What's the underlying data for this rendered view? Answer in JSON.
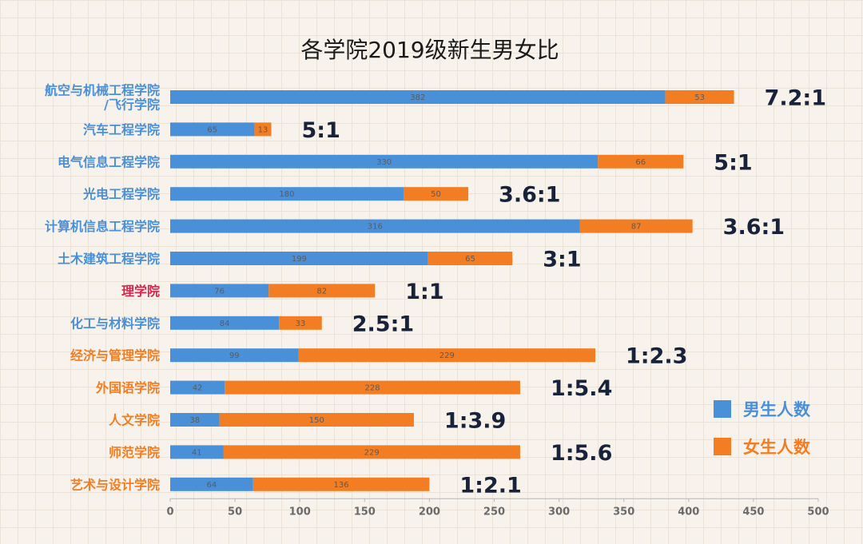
{
  "chart_data": {
    "type": "bar",
    "orientation": "horizontal",
    "stacked": true,
    "title": "各学院2019级新生男女比",
    "categories": [
      [
        "航空与机械工程学院",
        "/飞行学院"
      ],
      [
        "汽车工程学院"
      ],
      [
        "电气信息工程学院"
      ],
      [
        "光电工程学院"
      ],
      [
        "计算机信息工程学院"
      ],
      [
        "土木建筑工程学院"
      ],
      [
        "理学院"
      ],
      [
        "化工与材料学院"
      ],
      [
        "经济与管理学院"
      ],
      [
        "外国语学院"
      ],
      [
        "人文学院"
      ],
      [
        "师范学院"
      ],
      [
        "艺术与设计学院"
      ]
    ],
    "category_colors": [
      "#4a90d9",
      "#4a90d9",
      "#4a90d9",
      "#4a90d9",
      "#4a90d9",
      "#4a90d9",
      "#d6254a",
      "#4a90d9",
      "#f27d22",
      "#f27d22",
      "#f27d22",
      "#f27d22",
      "#f27d22"
    ],
    "series": [
      {
        "name": "男生人数",
        "color": "#4a90d9",
        "values": [
          382,
          65,
          330,
          180,
          316,
          199,
          76,
          84,
          99,
          42,
          38,
          41,
          64
        ]
      },
      {
        "name": "女生人数",
        "color": "#f27d22",
        "values": [
          53,
          13,
          66,
          50,
          87,
          65,
          82,
          33,
          229,
          228,
          150,
          229,
          136
        ]
      }
    ],
    "ratios": [
      "7.2:1",
      "5:1",
      "5:1",
      "3.6:1",
      "3.6:1",
      "3:1",
      "1:1",
      "2.5:1",
      "1:2.3",
      "1:5.4",
      "1:3.9",
      "1:5.6",
      "1:2.1"
    ],
    "xlim": [
      0,
      500
    ],
    "xticks": [
      0,
      50,
      100,
      150,
      200,
      250,
      300,
      350,
      400,
      450,
      500
    ],
    "xlabel": "",
    "ylabel": "",
    "grid": false,
    "legend_position": "right"
  }
}
